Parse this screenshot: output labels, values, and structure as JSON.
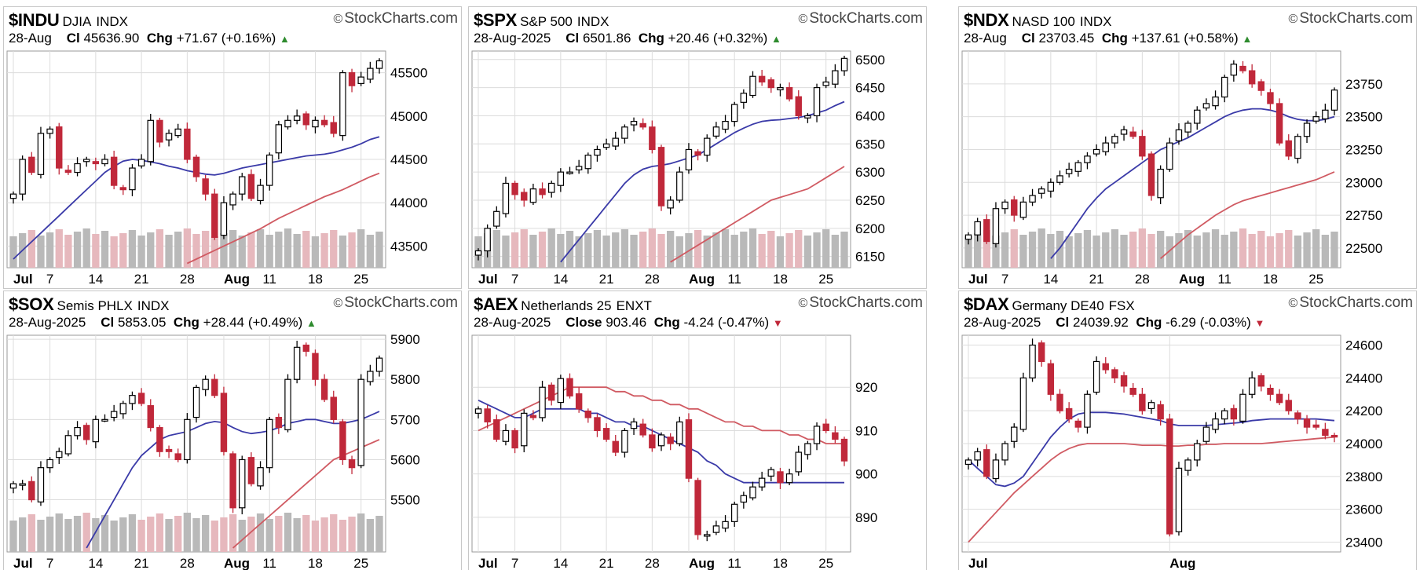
{
  "brand": "StockCharts.com",
  "colors": {
    "up": "#ffffff",
    "upStroke": "#000000",
    "down": "#c0283a",
    "downHollow": "#ffffff",
    "ma20": "#3a3aa8",
    "ma50": "#d05a62",
    "volUp": "#b9b9b9",
    "volDown": "#e6b8bd",
    "grid": "#dcdcdc"
  },
  "panels": [
    {
      "symbol": "$INDU",
      "name": "DJIA",
      "exchange": "INDX",
      "date": "28-Aug",
      "close_label": "Cl",
      "close": "45636.90",
      "chg_label": "Chg",
      "chg": "+71.67 (+0.16%)",
      "direction": "up",
      "chart_data": {
        "type": "candlestick",
        "ylim": [
          43250,
          45750
        ],
        "yticks": [
          "45500",
          "45000",
          "44500",
          "44000",
          "43500"
        ],
        "xticks": [
          "Jul",
          "7",
          "14",
          "21",
          "28",
          "Aug",
          "11",
          "18",
          "25"
        ],
        "xtick_index": [
          0,
          4,
          9,
          14,
          19,
          23,
          28,
          33,
          38
        ],
        "closes": [
          44100,
          44500,
          44350,
          44800,
          44850,
          44400,
          44350,
          44450,
          44500,
          44450,
          44500,
          44200,
          44150,
          44400,
          44500,
          44950,
          44700,
          44800,
          44850,
          44500,
          44300,
          44100,
          43600,
          44000,
          44100,
          44300,
          44050,
          44200,
          44550,
          44900,
          44950,
          45000,
          44900,
          44950,
          44900,
          44800,
          45500,
          45350,
          45450,
          45550,
          45637
        ],
        "ma20": [
          43350,
          43450,
          43550,
          43650,
          43750,
          43850,
          43950,
          44050,
          44150,
          44250,
          44350,
          44420,
          44480,
          44500,
          44490,
          44470,
          44450,
          44420,
          44400,
          44370,
          44350,
          44330,
          44320,
          44340,
          44370,
          44400,
          44420,
          44440,
          44460,
          44480,
          44500,
          44520,
          44540,
          44550,
          44560,
          44580,
          44610,
          44640,
          44680,
          44730,
          44760
        ],
        "ma50": [
          null,
          null,
          null,
          null,
          null,
          null,
          null,
          null,
          null,
          null,
          null,
          null,
          null,
          null,
          null,
          null,
          null,
          null,
          null,
          43300,
          43350,
          43400,
          43450,
          43500,
          43550,
          43600,
          43650,
          43700,
          43760,
          43820,
          43870,
          43920,
          43970,
          44020,
          44070,
          44110,
          44150,
          44200,
          44250,
          44300,
          44340
        ]
      }
    },
    {
      "symbol": "$SPX",
      "name": "S&P 500",
      "exchange": "INDX",
      "date": "28-Aug-2025",
      "close_label": "Cl",
      "close": "6501.86",
      "chg_label": "Chg",
      "chg": "+20.46 (+0.32%)",
      "direction": "up",
      "chart_data": {
        "type": "candlestick",
        "ylim": [
          6130,
          6515
        ],
        "yticks": [
          "6500",
          "6450",
          "6400",
          "6350",
          "6300",
          "6250",
          "6200",
          "6150"
        ],
        "xticks": [
          "Jul",
          "7",
          "14",
          "21",
          "28",
          "Aug",
          "11",
          "18",
          "25"
        ],
        "xtick_index": [
          0,
          4,
          9,
          14,
          19,
          23,
          28,
          33,
          38
        ],
        "closes": [
          6160,
          6200,
          6230,
          6280,
          6260,
          6250,
          6270,
          6260,
          6280,
          6300,
          6300,
          6310,
          6330,
          6340,
          6350,
          6360,
          6380,
          6390,
          6380,
          6340,
          6240,
          6250,
          6300,
          6340,
          6330,
          6360,
          6380,
          6390,
          6420,
          6440,
          6470,
          6460,
          6450,
          6450,
          6430,
          6400,
          6400,
          6450,
          6460,
          6480,
          6502
        ],
        "ma20": [
          null,
          null,
          null,
          null,
          null,
          null,
          null,
          null,
          null,
          6140,
          6160,
          6180,
          6200,
          6220,
          6240,
          6260,
          6280,
          6295,
          6305,
          6310,
          6312,
          6315,
          6320,
          6325,
          6330,
          6340,
          6350,
          6360,
          6370,
          6378,
          6385,
          6390,
          6392,
          6393,
          6395,
          6397,
          6400,
          6405,
          6410,
          6418,
          6425
        ],
        "ma50": [
          null,
          null,
          null,
          null,
          null,
          null,
          null,
          null,
          null,
          null,
          null,
          null,
          null,
          null,
          null,
          null,
          null,
          null,
          null,
          null,
          null,
          6140,
          6150,
          6160,
          6170,
          6180,
          6190,
          6200,
          6210,
          6220,
          6230,
          6240,
          6250,
          6255,
          6260,
          6265,
          6270,
          6280,
          6290,
          6300,
          6310
        ]
      }
    },
    {
      "symbol": "$NDX",
      "name": "NASD 100",
      "exchange": "INDX",
      "date": "28-Aug",
      "close_label": "Cl",
      "close": "23703.45",
      "chg_label": "Chg",
      "chg": "+137.61 (+0.58%)",
      "direction": "up",
      "chart_data": {
        "type": "candlestick",
        "ylim": [
          22350,
          24000
        ],
        "yticks": [
          "23750",
          "23500",
          "23250",
          "23000",
          "22750",
          "22500"
        ],
        "xticks": [
          "Jul",
          "7",
          "14",
          "21",
          "28",
          "Aug",
          "11",
          "18",
          "25"
        ],
        "xtick_index": [
          0,
          4,
          9,
          14,
          19,
          23,
          28,
          33,
          38
        ],
        "closes": [
          22600,
          22700,
          22550,
          22800,
          22850,
          22750,
          22850,
          22900,
          22950,
          23000,
          23050,
          23100,
          23150,
          23200,
          23250,
          23300,
          23350,
          23400,
          23350,
          23200,
          22900,
          23100,
          23300,
          23400,
          23450,
          23550,
          23600,
          23650,
          23800,
          23900,
          23850,
          23750,
          23700,
          23600,
          23300,
          23200,
          23350,
          23450,
          23500,
          23550,
          23703
        ],
        "ma20": [
          null,
          null,
          null,
          null,
          null,
          null,
          null,
          null,
          null,
          22420,
          22500,
          22600,
          22700,
          22800,
          22880,
          22950,
          23000,
          23050,
          23100,
          23150,
          23200,
          23250,
          23280,
          23310,
          23340,
          23380,
          23420,
          23460,
          23500,
          23530,
          23550,
          23560,
          23560,
          23550,
          23530,
          23500,
          23480,
          23470,
          23470,
          23480,
          23500
        ],
        "ma50": [
          null,
          null,
          null,
          null,
          null,
          null,
          null,
          null,
          null,
          null,
          null,
          null,
          null,
          null,
          null,
          null,
          null,
          null,
          null,
          null,
          null,
          22420,
          22480,
          22540,
          22600,
          22650,
          22700,
          22750,
          22790,
          22830,
          22860,
          22880,
          22900,
          22920,
          22940,
          22960,
          22980,
          23000,
          23020,
          23050,
          23080
        ]
      }
    },
    {
      "symbol": "$SOX",
      "name": "Semis PHLX",
      "exchange": "INDX",
      "date": "28-Aug-2025",
      "close_label": "Cl",
      "close": "5853.05",
      "chg_label": "Chg",
      "chg": "+28.44 (+0.49%)",
      "direction": "up",
      "chart_data": {
        "type": "candlestick",
        "ylim": [
          5370,
          5910
        ],
        "yticks": [
          "5900",
          "5800",
          "5700",
          "5600",
          "5500"
        ],
        "xticks": [
          "Jul",
          "7",
          "14",
          "21",
          "28",
          "Aug",
          "11",
          "18",
          "25"
        ],
        "xtick_index": [
          0,
          4,
          9,
          14,
          19,
          23,
          28,
          33,
          38
        ],
        "closes": [
          5540,
          5540,
          5500,
          5580,
          5600,
          5620,
          5660,
          5680,
          5650,
          5700,
          5700,
          5720,
          5740,
          5760,
          5740,
          5680,
          5620,
          5620,
          5600,
          5700,
          5780,
          5800,
          5760,
          5620,
          5480,
          5600,
          5540,
          5580,
          5700,
          5680,
          5800,
          5880,
          5870,
          5800,
          5750,
          5700,
          5600,
          5580,
          5800,
          5820,
          5853
        ],
        "ma20": [
          null,
          null,
          null,
          null,
          null,
          null,
          null,
          null,
          5380,
          5420,
          5460,
          5500,
          5540,
          5580,
          5610,
          5630,
          5650,
          5660,
          5665,
          5670,
          5680,
          5690,
          5695,
          5692,
          5680,
          5670,
          5665,
          5668,
          5672,
          5680,
          5690,
          5695,
          5700,
          5700,
          5695,
          5690,
          5690,
          5695,
          5700,
          5710,
          5720
        ],
        "ma50": [
          null,
          null,
          null,
          null,
          null,
          null,
          null,
          null,
          null,
          null,
          null,
          null,
          null,
          null,
          null,
          null,
          null,
          null,
          null,
          null,
          null,
          null,
          null,
          null,
          5380,
          5400,
          5420,
          5440,
          5460,
          5480,
          5500,
          5520,
          5540,
          5560,
          5580,
          5600,
          5610,
          5620,
          5630,
          5640,
          5650
        ]
      }
    },
    {
      "symbol": "$AEX",
      "name": "Netherlands 25",
      "exchange": "ENXT",
      "date": "28-Aug-2025",
      "close_label": "Close",
      "close": "903.46",
      "chg_label": "Chg",
      "chg": "-4.24 (-0.47%)",
      "direction": "down",
      "chart_data": {
        "type": "candlestick",
        "ylim": [
          882,
          932
        ],
        "yticks": [
          "920",
          "910",
          "900",
          "890"
        ],
        "xticks": [
          "Jul",
          "7",
          "14",
          "21",
          "28",
          "Aug",
          "11",
          "18",
          "25"
        ],
        "xtick_index": [
          0,
          4,
          9,
          14,
          19,
          23,
          28,
          33,
          38
        ],
        "closes": [
          915,
          912,
          908,
          910,
          906,
          914,
          913,
          920,
          917,
          922,
          918,
          915,
          913,
          910,
          908,
          905,
          910,
          912,
          909,
          906,
          909,
          907,
          912,
          899,
          886,
          886,
          888,
          889,
          893,
          895,
          897,
          899,
          901,
          898,
          900,
          905,
          907,
          911,
          910,
          908,
          903
        ],
        "ma20": [
          917,
          916,
          915,
          914,
          913,
          913,
          914,
          915,
          915,
          915,
          915,
          915,
          914,
          914,
          913,
          912,
          912,
          911,
          911,
          910,
          909,
          908,
          907,
          906,
          905,
          903,
          902,
          900,
          899,
          898,
          898,
          898,
          898,
          898,
          898,
          898,
          898,
          898,
          898,
          898,
          898
        ],
        "ma50": [
          910,
          911,
          912,
          913,
          914,
          915,
          916,
          917,
          918,
          919,
          920,
          920,
          920,
          920,
          920,
          919,
          919,
          918,
          918,
          917,
          917,
          916,
          916,
          915,
          915,
          914,
          913,
          912,
          912,
          911,
          911,
          910,
          910,
          910,
          909,
          909,
          908,
          908,
          907,
          907,
          907
        ]
      }
    },
    {
      "symbol": "$DAX",
      "name": "Germany DE40",
      "exchange": "FSX",
      "date": "28-Aug-2025",
      "close_label": "Cl",
      "close": "24039.92",
      "chg_label": "Chg",
      "chg": "-6.29 (-0.03%)",
      "direction": "down",
      "chart_data": {
        "type": "candlestick",
        "ylim": [
          23340,
          24660
        ],
        "yticks": [
          "24600",
          "24400",
          "24200",
          "24000",
          "23800",
          "23600",
          "23400"
        ],
        "xticks": [
          "Jul",
          "Aug"
        ],
        "xtick_index": [
          0,
          22
        ],
        "closes": [
          23900,
          23950,
          23800,
          23900,
          24000,
          24100,
          24400,
          24600,
          24500,
          24300,
          24200,
          24150,
          24100,
          24300,
          24500,
          24450,
          24400,
          24350,
          24300,
          24200,
          24250,
          24150,
          23450,
          23850,
          23900,
          24000,
          24100,
          24150,
          24200,
          24150,
          24300,
          24400,
          24350,
          24300,
          24250,
          24200,
          24150,
          24100,
          24100,
          24050,
          24040
        ],
        "ma20": [
          23900,
          23850,
          23800,
          23750,
          23740,
          23760,
          23800,
          23880,
          23960,
          24040,
          24100,
          24150,
          24180,
          24190,
          24190,
          24190,
          24185,
          24180,
          24170,
          24160,
          24150,
          24140,
          24120,
          24110,
          24110,
          24110,
          24110,
          24115,
          24120,
          24125,
          24130,
          24140,
          24145,
          24150,
          24150,
          24150,
          24150,
          24150,
          24150,
          24145,
          24140
        ],
        "ma50": [
          23400,
          23460,
          23520,
          23580,
          23640,
          23700,
          23750,
          23800,
          23850,
          23900,
          23940,
          23970,
          23990,
          24000,
          24000,
          24000,
          24000,
          24000,
          23995,
          23990,
          23990,
          23990,
          23985,
          23985,
          23990,
          23990,
          23995,
          23995,
          24000,
          24000,
          24000,
          24000,
          24000,
          24005,
          24010,
          24015,
          24020,
          24025,
          24030,
          24035,
          24040
        ]
      }
    }
  ]
}
